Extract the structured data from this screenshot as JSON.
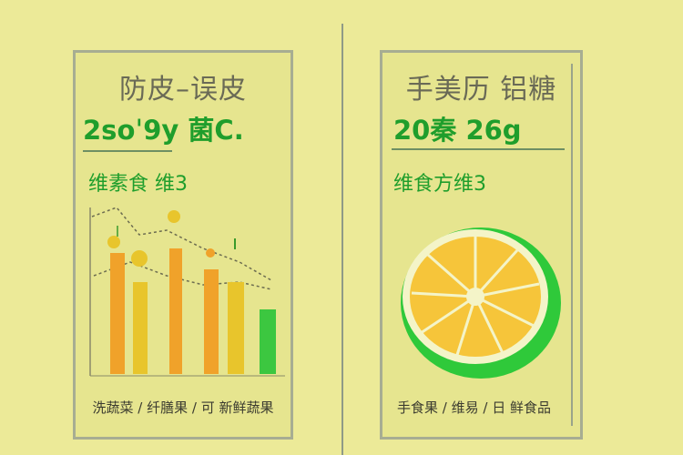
{
  "left_card": {
    "title": "防皮–误皮",
    "big_number": "2soˈ9y 菌C.",
    "subtitle": "维素食 维3",
    "footer": "洗蔬菜 / 纤膳果 /  可 新鲜蔬果"
  },
  "right_card": {
    "title": "手美历 铝糖",
    "big_number": "20秦 26g",
    "subtitle": "维食方维3",
    "footer": "手食果  / 维易  / 日 鲜食品"
  },
  "colors": {
    "background": "#ecea98",
    "card": "#e6e58f",
    "accent_green": "#1f9e2c",
    "bar_orange": "#f0a22a",
    "bar_yellow": "#e8c52c",
    "lemon_green": "#2fc93a",
    "lemon_yellow": "#f6c53a"
  },
  "icons": {
    "left_illustration": "bar-chart-fruit-icon",
    "right_illustration": "lemon-slice-icon"
  }
}
